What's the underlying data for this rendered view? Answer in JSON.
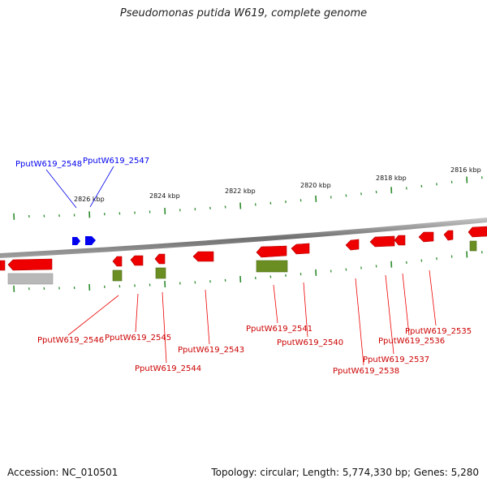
{
  "title": "Pseudomonas putida W619, complete genome",
  "accession": "Accession: NC_010501",
  "summary": "Topology: circular; Length: 5,774,330 bp; Genes: 5,280",
  "colors": {
    "forward_gene": "#0000ee",
    "reverse_gene": "#ee0000",
    "rna_feature": "#6b8e23",
    "pseudo_feature": "#b0b0b0",
    "backbone": "#888888",
    "tick": "#2e8b2e"
  },
  "kbp_labels": [
    "2826 kbp",
    "2824 kbp",
    "2822 kbp",
    "2820 kbp",
    "2818 kbp",
    "2816 kbp"
  ],
  "forward_genes": [
    "PputW619_2548",
    "PputW619_2547"
  ],
  "reverse_genes": [
    "PputW619_2546",
    "PputW619_2545",
    "PputW619_2544",
    "PputW619_2543",
    "PputW619_2541",
    "PputW619_2540",
    "PputW619_2538",
    "PputW619_2537",
    "PputW619_2536",
    "PputW619_2535"
  ]
}
